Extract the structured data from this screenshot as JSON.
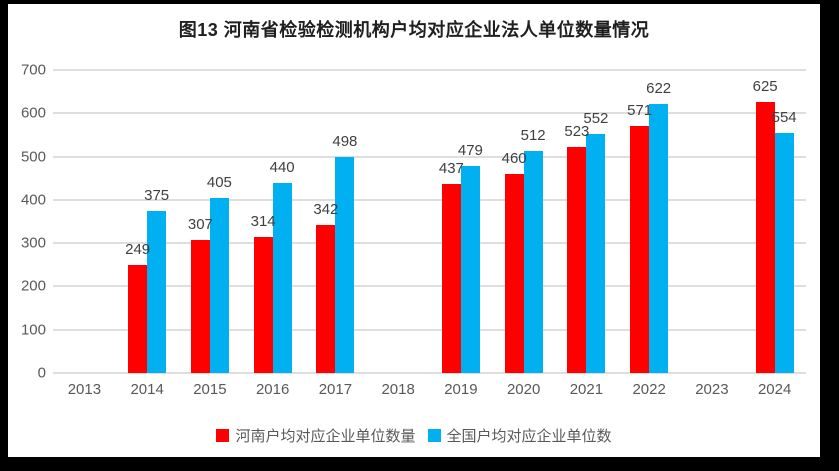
{
  "frame": {
    "background_color": "#000000",
    "panel_color": "#FFFFFF"
  },
  "chart_data": {
    "type": "bar",
    "title": "图13 河南省检验检测机构户均对应企业法人单位数量情况",
    "categories": [
      "2013",
      "2014",
      "2015",
      "2016",
      "2017",
      "2018",
      "2019",
      "2020",
      "2021",
      "2022",
      "2023",
      "2024"
    ],
    "series": [
      {
        "name": "河南户均对应企业单位数量",
        "color": "#FF0000",
        "values": [
          null,
          249,
          307,
          314,
          342,
          null,
          437,
          460,
          523,
          571,
          null,
          625
        ]
      },
      {
        "name": "全国户均对应企业单位数",
        "color": "#00B0F0",
        "values": [
          null,
          375,
          405,
          440,
          498,
          null,
          479,
          512,
          552,
          622,
          null,
          554
        ]
      }
    ],
    "ylim": [
      0,
      700
    ],
    "yticks": [
      0,
      100,
      200,
      300,
      400,
      500,
      600,
      700
    ],
    "grid": true,
    "data_labels": true,
    "legend_position": "bottom",
    "colors": {
      "gridline": "#DEDEDE",
      "axis_text": "#595959",
      "data_label_text": "#404040",
      "title_text": "#1F1F1F"
    }
  }
}
